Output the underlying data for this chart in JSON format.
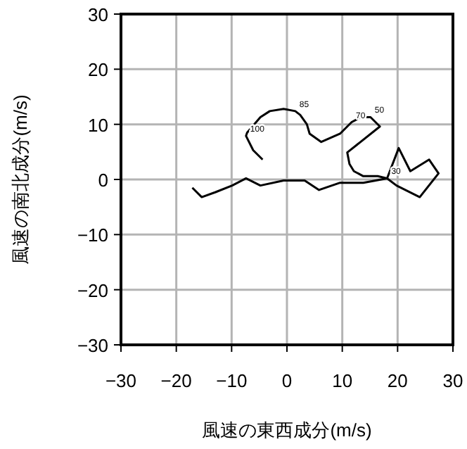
{
  "chart_data": {
    "type": "line",
    "xlabel": "風速の東西成分(m/s)",
    "ylabel": "風速の南北成分(m/s)",
    "x": [
      -4.4,
      -6.1,
      -7.4,
      -7.2,
      -4.8,
      -3.1,
      -0.6,
      1.5,
      2.4,
      3.6,
      4.1,
      6.2,
      9.6,
      11.7,
      13.4,
      15.1,
      16.8,
      10.9,
      11.3,
      12.1,
      13.8,
      16.4,
      18.1,
      20.2,
      22.3,
      25.7,
      27.4,
      24,
      19.8,
      18.1,
      13.8,
      9.6,
      5.8,
      3.2,
      -0.6,
      -4.8,
      -7.4,
      -9.9,
      -12.9,
      -15.4,
      -17.1
    ],
    "values": [
      3.6,
      5.3,
      7.9,
      8.5,
      11.3,
      12.4,
      12.8,
      12.4,
      11.7,
      10.0,
      8.3,
      6.8,
      8.3,
      10.4,
      11.3,
      11.3,
      9.6,
      4.9,
      2.8,
      1.5,
      0.6,
      0.6,
      0.2,
      5.7,
      1.5,
      3.6,
      1.1,
      -3.2,
      -1.1,
      0.2,
      -0.6,
      -0.6,
      -1.9,
      -0.2,
      -0.2,
      -1.1,
      0.2,
      -1.1,
      -2.3,
      -3.2,
      -1.5
    ],
    "color": "#000000",
    "xlim": [
      -30,
      30
    ],
    "ylim": [
      -30,
      30
    ],
    "xticks": [
      -30,
      -20,
      -10,
      0,
      10,
      20,
      30
    ],
    "yticks": [
      -30,
      -20,
      -10,
      0,
      10,
      20,
      30
    ],
    "grid": true,
    "annotations": [
      {
        "text": "100",
        "x": -7.4,
        "y": 7.9
      },
      {
        "text": "85",
        "x": 1.5,
        "y": 12.4
      },
      {
        "text": "70",
        "x": 11.7,
        "y": 10.4
      },
      {
        "text": "50",
        "x": 15.1,
        "y": 11.3
      },
      {
        "text": "30",
        "x": 18.1,
        "y": 0.2
      }
    ]
  }
}
